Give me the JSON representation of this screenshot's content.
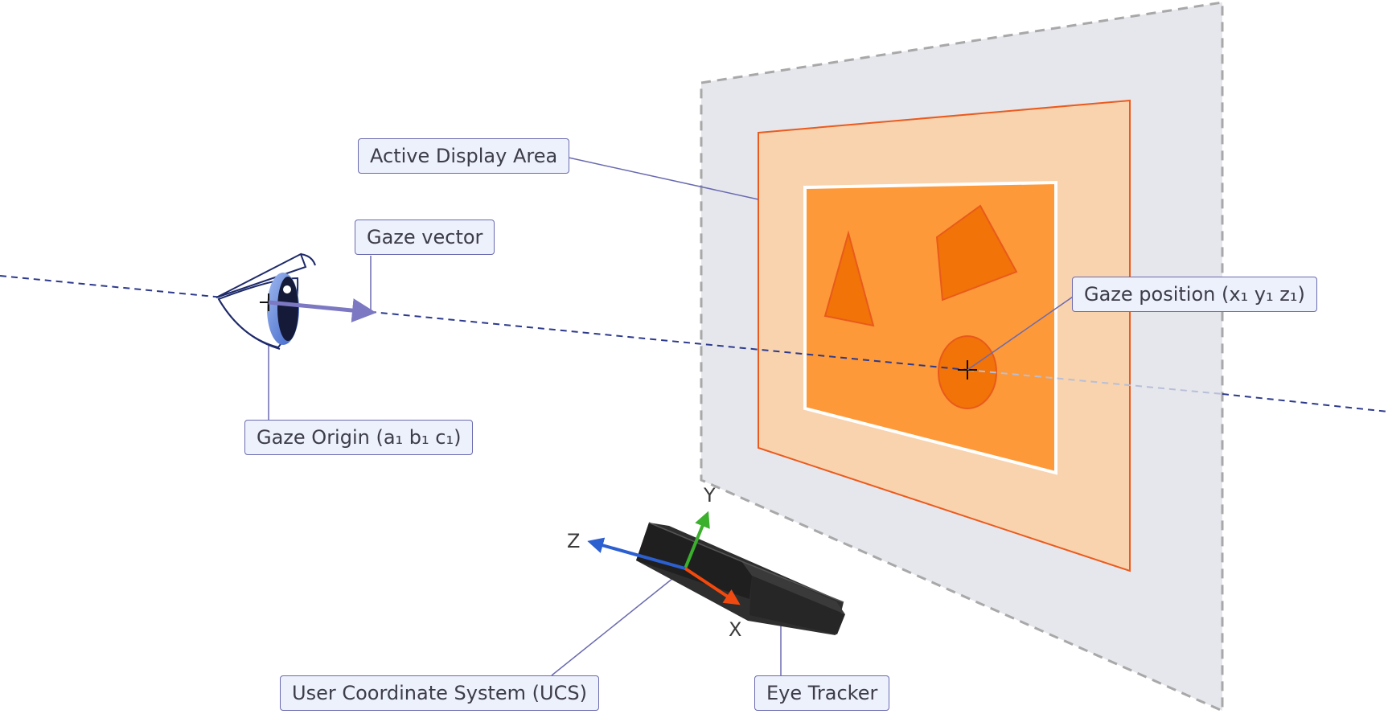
{
  "labels": {
    "active_display_area": "Active Display Area",
    "gaze_vector": "Gaze vector",
    "gaze_position": "Gaze position (x₁ y₁ z₁)",
    "gaze_origin": "Gaze Origin (a₁ b₁ c₁)",
    "user_coordinate_system": "User Coordinate System (UCS)",
    "eye_tracker": "Eye Tracker"
  },
  "axes": {
    "x": "X",
    "y": "Y",
    "z": "Z"
  },
  "colors": {
    "monitor_plane": "#e6e7ec",
    "display_area_fill": "#f8d3ae",
    "display_area_border": "#ea5b1e",
    "screen_content": "#fd9939",
    "shape_fill": "#f27307",
    "gaze_line": "#2d3a8c",
    "callout_border": "#6a6ab0",
    "callout_fill": "#edf1fb",
    "axis_x": "#f04a10",
    "axis_y": "#3bb02c",
    "axis_z": "#2c5fd0",
    "tracker_body": "#2e2e2e"
  },
  "icons": {
    "eye": "eye-icon",
    "eye_tracker": "eye-tracker-device",
    "crosshair": "crosshair-icon"
  }
}
